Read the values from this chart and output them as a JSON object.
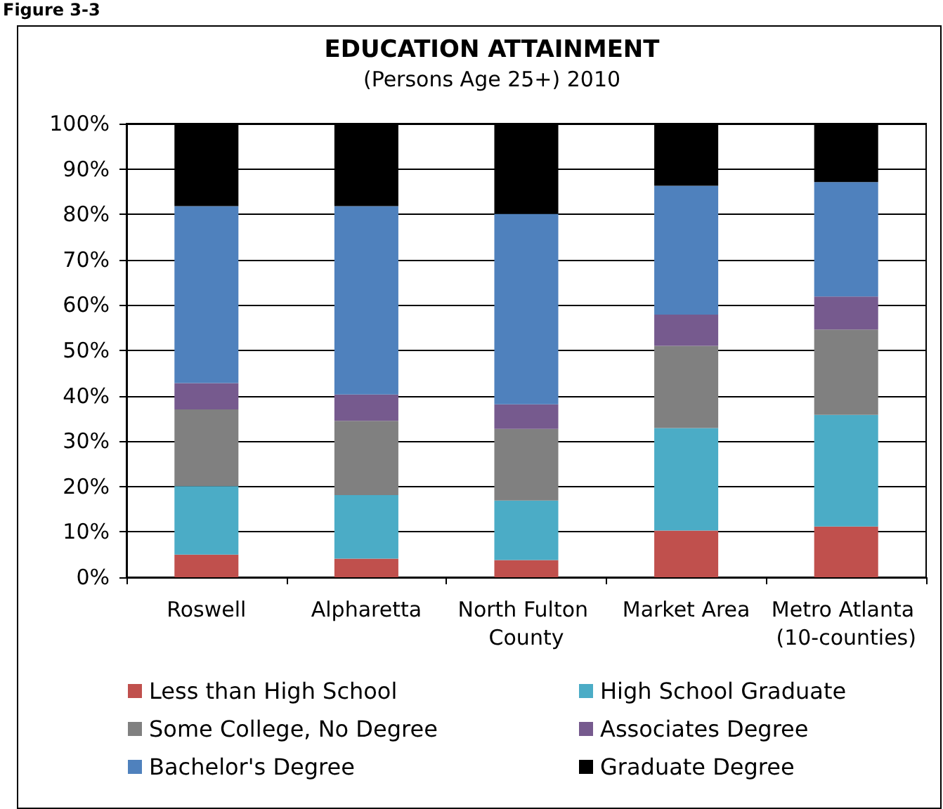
{
  "chart_data": {
    "type": "bar",
    "title": "EDUCATION ATTAINMENT",
    "subtitle": "(Persons Age 25+) 2010",
    "annotations": [
      "Figure 3-3"
    ],
    "categories": [
      "Roswell",
      "Alpharetta",
      "North Fulton County",
      "Market Area",
      "Metro Atlanta (10-counties)"
    ],
    "stacked": true,
    "series": [
      {
        "name": "Less than High School",
        "color": "#c0504d",
        "values": [
          5.0,
          4.1,
          3.8,
          10.3,
          11.2
        ]
      },
      {
        "name": "High School Graduate",
        "color": "#4bacc6",
        "values": [
          15.1,
          14.0,
          13.1,
          22.6,
          24.6
        ]
      },
      {
        "name": "Some College, No Degree",
        "color": "#808080",
        "values": [
          16.9,
          16.4,
          15.8,
          18.1,
          18.8
        ]
      },
      {
        "name": "Associates Degree",
        "color": "#765a8e",
        "values": [
          5.8,
          5.8,
          5.4,
          6.9,
          7.3
        ]
      },
      {
        "name": "Bachelor's Degree",
        "color": "#4f81bd",
        "values": [
          39.0,
          41.5,
          42.0,
          28.4,
          25.2
        ]
      },
      {
        "name": "Graduate Degree",
        "color": "#000000",
        "values": [
          18.2,
          18.2,
          19.9,
          13.7,
          12.9
        ]
      }
    ],
    "ylim": [
      0,
      100
    ],
    "yticks": [
      {
        "value": 0,
        "label": "0%"
      },
      {
        "value": 10,
        "label": "10%"
      },
      {
        "value": 20,
        "label": "20%"
      },
      {
        "value": 30,
        "label": "30%"
      },
      {
        "value": 40,
        "label": "40%"
      },
      {
        "value": 50,
        "label": "50%"
      },
      {
        "value": 60,
        "label": "60%"
      },
      {
        "value": 70,
        "label": "70%"
      },
      {
        "value": 80,
        "label": "80%"
      },
      {
        "value": 90,
        "label": "90%"
      },
      {
        "value": 100,
        "label": "100%"
      }
    ],
    "grid": "y",
    "legend": "bottom"
  }
}
